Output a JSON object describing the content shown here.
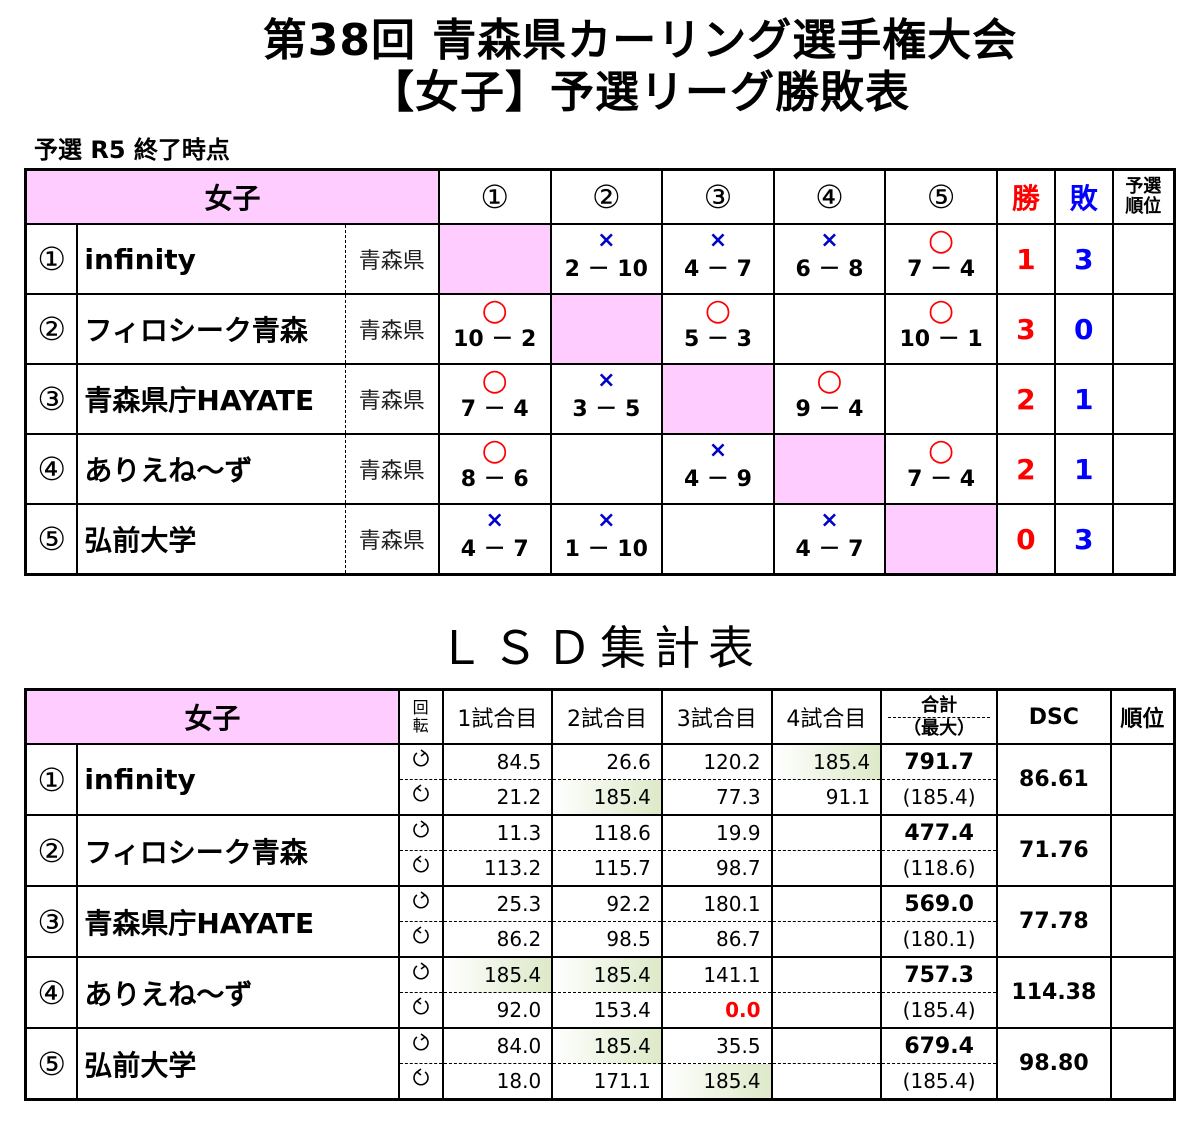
{
  "title": {
    "line1": "第38回 青森県カーリング選手権大会",
    "line2": "【女子】予選リーグ勝敗表"
  },
  "status": "予選 R5 終了時点",
  "league": {
    "header": {
      "label": "女子",
      "opponents": [
        "①",
        "②",
        "③",
        "④",
        "⑤"
      ],
      "wins": "勝",
      "losses": "敗",
      "rank_line1": "予選",
      "rank_line2": "順位"
    },
    "rows": [
      {
        "num": "①",
        "team": "infinity",
        "pref": "青森県",
        "results": [
          {
            "self": true,
            "mark": "",
            "score": ""
          },
          {
            "mark": "×",
            "score": "2 － 10"
          },
          {
            "mark": "×",
            "score": "4 － 7"
          },
          {
            "mark": "×",
            "score": "6 － 8"
          },
          {
            "mark": "○",
            "score": "7 － 4"
          }
        ],
        "wins": "1",
        "losses": "3",
        "rank": ""
      },
      {
        "num": "②",
        "team": "フィロシーク青森",
        "pref": "青森県",
        "results": [
          {
            "mark": "○",
            "score": "10 － 2"
          },
          {
            "self": true,
            "mark": "",
            "score": ""
          },
          {
            "mark": "○",
            "score": "5 － 3"
          },
          {
            "mark": "",
            "score": ""
          },
          {
            "mark": "○",
            "score": "10 － 1"
          }
        ],
        "wins": "3",
        "losses": "0",
        "rank": ""
      },
      {
        "num": "③",
        "team": "青森県庁HAYATE",
        "pref": "青森県",
        "results": [
          {
            "mark": "○",
            "score": "7 － 4"
          },
          {
            "mark": "×",
            "score": "3 － 5"
          },
          {
            "self": true,
            "mark": "",
            "score": ""
          },
          {
            "mark": "○",
            "score": "9 － 4"
          },
          {
            "mark": "",
            "score": ""
          }
        ],
        "wins": "2",
        "losses": "1",
        "rank": ""
      },
      {
        "num": "④",
        "team": "ありえね～ず",
        "pref": "青森県",
        "results": [
          {
            "mark": "○",
            "score": "8 － 6"
          },
          {
            "mark": "",
            "score": ""
          },
          {
            "mark": "×",
            "score": "4 － 9"
          },
          {
            "self": true,
            "mark": "",
            "score": ""
          },
          {
            "mark": "○",
            "score": "7 － 4"
          }
        ],
        "wins": "2",
        "losses": "1",
        "rank": ""
      },
      {
        "num": "⑤",
        "team": "弘前大学",
        "pref": "青森県",
        "results": [
          {
            "mark": "×",
            "score": "4 － 7"
          },
          {
            "mark": "×",
            "score": "1 － 10"
          },
          {
            "mark": "",
            "score": ""
          },
          {
            "mark": "×",
            "score": "4 － 7"
          },
          {
            "self": true,
            "mark": "",
            "score": ""
          }
        ],
        "wins": "0",
        "losses": "3",
        "rank": ""
      }
    ]
  },
  "lsd": {
    "title": "ＬＳＤ集計表",
    "header": {
      "label": "女子",
      "rot_line1": "回",
      "rot_line2": "転",
      "games": [
        "1試合目",
        "2試合目",
        "3試合目",
        "4試合目"
      ],
      "total_line1": "合計",
      "total_line2": "（最大）",
      "dsc": "DSC",
      "rank": "順位"
    },
    "rows": [
      {
        "num": "①",
        "team": "infinity",
        "cw": [
          "84.5",
          "26.6",
          "120.2",
          "185.4"
        ],
        "cw_best": [
          false,
          false,
          false,
          true
        ],
        "ccw": [
          "21.2",
          "185.4",
          "77.3",
          "91.1"
        ],
        "ccw_best": [
          false,
          true,
          false,
          false
        ],
        "total": "791.7",
        "max": "(185.4)",
        "dsc": "86.61",
        "rank": ""
      },
      {
        "num": "②",
        "team": "フィロシーク青森",
        "cw": [
          "11.3",
          "118.6",
          "19.9",
          ""
        ],
        "cw_best": [
          false,
          false,
          false,
          false
        ],
        "ccw": [
          "113.2",
          "115.7",
          "98.7",
          ""
        ],
        "ccw_best": [
          false,
          false,
          false,
          false
        ],
        "total": "477.4",
        "max": "(118.6)",
        "dsc": "71.76",
        "rank": ""
      },
      {
        "num": "③",
        "team": "青森県庁HAYATE",
        "cw": [
          "25.3",
          "92.2",
          "180.1",
          ""
        ],
        "cw_best": [
          false,
          false,
          false,
          false
        ],
        "ccw": [
          "86.2",
          "98.5",
          "86.7",
          ""
        ],
        "ccw_best": [
          false,
          false,
          false,
          false
        ],
        "total": "569.0",
        "max": "(180.1)",
        "dsc": "77.78",
        "rank": ""
      },
      {
        "num": "④",
        "team": "ありえね～ず",
        "cw": [
          "185.4",
          "185.4",
          "141.1",
          ""
        ],
        "cw_best": [
          true,
          true,
          false,
          false
        ],
        "ccw": [
          "92.0",
          "153.4",
          "0.0",
          ""
        ],
        "ccw_best": [
          false,
          false,
          false,
          false
        ],
        "total": "757.3",
        "max": "(185.4)",
        "dsc": "114.38",
        "rank": ""
      },
      {
        "num": "⑤",
        "team": "弘前大学",
        "cw": [
          "84.0",
          "185.4",
          "35.5",
          ""
        ],
        "cw_best": [
          false,
          true,
          false,
          false
        ],
        "ccw": [
          "18.0",
          "171.1",
          "185.4",
          ""
        ],
        "ccw_best": [
          false,
          false,
          true,
          false
        ],
        "total": "679.4",
        "max": "(185.4)",
        "dsc": "98.80",
        "rank": ""
      }
    ]
  },
  "icons": {
    "clockwise": "clockwise-rotation-icon",
    "counterclockwise": "counterclockwise-rotation-icon"
  }
}
